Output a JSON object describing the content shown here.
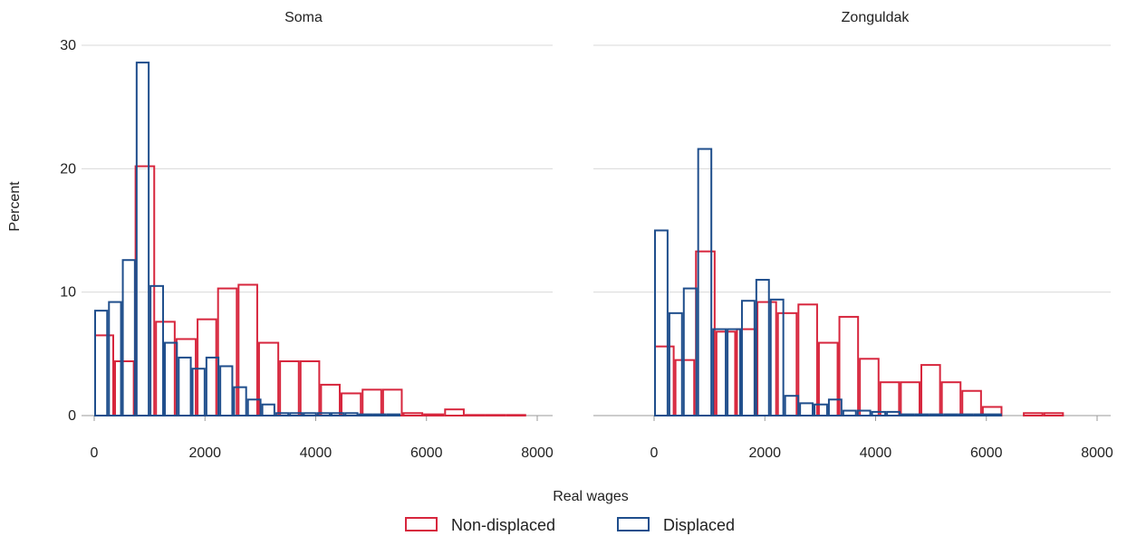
{
  "title": "",
  "colors": {
    "non_displaced": "#d7263d",
    "displaced": "#1f4e8c",
    "grid": "#d9d9d9",
    "axis": "#999999"
  },
  "chart_data": {
    "type": "bar",
    "xlabel": "Real wages",
    "ylabel": "Percent",
    "xlim": [
      0,
      8000
    ],
    "ylim": [
      0,
      30
    ],
    "xticks": [
      0,
      2000,
      4000,
      6000,
      8000
    ],
    "yticks": [
      0,
      10,
      20,
      30
    ],
    "grid": true,
    "legend_position": "bottom-center",
    "legend": [
      {
        "name": "Non-displaced",
        "color": "#d7263d"
      },
      {
        "name": "Displaced",
        "color": "#1f4e8c"
      }
    ],
    "panels": [
      {
        "title": "Soma",
        "series": [
          {
            "name": "Non-displaced",
            "bins": [
              {
                "x0": 0,
                "x1": 360,
                "y": 6.5
              },
              {
                "x0": 360,
                "x1": 730,
                "y": 4.4
              },
              {
                "x0": 730,
                "x1": 1100,
                "y": 20.2
              },
              {
                "x0": 1100,
                "x1": 1470,
                "y": 7.6
              },
              {
                "x0": 1470,
                "x1": 1850,
                "y": 6.2
              },
              {
                "x0": 1850,
                "x1": 2220,
                "y": 7.8
              },
              {
                "x0": 2220,
                "x1": 2590,
                "y": 10.3
              },
              {
                "x0": 2590,
                "x1": 2960,
                "y": 10.6
              },
              {
                "x0": 2960,
                "x1": 3340,
                "y": 5.9
              },
              {
                "x0": 3340,
                "x1": 3710,
                "y": 4.4
              },
              {
                "x0": 3710,
                "x1": 4080,
                "y": 4.4
              },
              {
                "x0": 4080,
                "x1": 4450,
                "y": 2.5
              },
              {
                "x0": 4450,
                "x1": 4830,
                "y": 1.8
              },
              {
                "x0": 4830,
                "x1": 5200,
                "y": 2.1
              },
              {
                "x0": 5200,
                "x1": 5570,
                "y": 2.1
              },
              {
                "x0": 5570,
                "x1": 5940,
                "y": 0.2
              },
              {
                "x0": 5940,
                "x1": 6320,
                "y": 0.1
              },
              {
                "x0": 6320,
                "x1": 6690,
                "y": 0.5
              },
              {
                "x0": 6690,
                "x1": 7060,
                "y": 0.05
              },
              {
                "x0": 7060,
                "x1": 7430,
                "y": 0.05
              },
              {
                "x0": 7430,
                "x1": 7800,
                "y": 0.05
              }
            ]
          },
          {
            "name": "Displaced",
            "bins": [
              {
                "x0": 0,
                "x1": 250,
                "y": 8.5
              },
              {
                "x0": 250,
                "x1": 500,
                "y": 9.2
              },
              {
                "x0": 500,
                "x1": 750,
                "y": 12.6
              },
              {
                "x0": 750,
                "x1": 1000,
                "y": 28.6
              },
              {
                "x0": 1000,
                "x1": 1260,
                "y": 10.5
              },
              {
                "x0": 1260,
                "x1": 1510,
                "y": 5.9
              },
              {
                "x0": 1510,
                "x1": 1760,
                "y": 4.7
              },
              {
                "x0": 1760,
                "x1": 2010,
                "y": 3.8
              },
              {
                "x0": 2010,
                "x1": 2260,
                "y": 4.7
              },
              {
                "x0": 2260,
                "x1": 2510,
                "y": 4.0
              },
              {
                "x0": 2510,
                "x1": 2760,
                "y": 2.3
              },
              {
                "x0": 2760,
                "x1": 3020,
                "y": 1.3
              },
              {
                "x0": 3020,
                "x1": 3270,
                "y": 0.9
              },
              {
                "x0": 3270,
                "x1": 3520,
                "y": 0.2
              },
              {
                "x0": 3520,
                "x1": 3770,
                "y": 0.2
              },
              {
                "x0": 3770,
                "x1": 4020,
                "y": 0.2
              },
              {
                "x0": 4020,
                "x1": 4270,
                "y": 0.2
              },
              {
                "x0": 4270,
                "x1": 4520,
                "y": 0.2
              },
              {
                "x0": 4520,
                "x1": 4770,
                "y": 0.2
              },
              {
                "x0": 4770,
                "x1": 5030,
                "y": 0.1
              },
              {
                "x0": 5030,
                "x1": 5280,
                "y": 0.1
              },
              {
                "x0": 5280,
                "x1": 5530,
                "y": 0.1
              }
            ]
          }
        ]
      },
      {
        "title": "Zonguldak",
        "series": [
          {
            "name": "Non-displaced",
            "bins": [
              {
                "x0": 0,
                "x1": 370,
                "y": 5.6
              },
              {
                "x0": 370,
                "x1": 740,
                "y": 4.5
              },
              {
                "x0": 740,
                "x1": 1110,
                "y": 13.3
              },
              {
                "x0": 1110,
                "x1": 1480,
                "y": 6.8
              },
              {
                "x0": 1480,
                "x1": 1850,
                "y": 7.0
              },
              {
                "x0": 1850,
                "x1": 2220,
                "y": 9.2
              },
              {
                "x0": 2220,
                "x1": 2590,
                "y": 8.3
              },
              {
                "x0": 2590,
                "x1": 2960,
                "y": 9.0
              },
              {
                "x0": 2960,
                "x1": 3330,
                "y": 5.9
              },
              {
                "x0": 3330,
                "x1": 3700,
                "y": 8.0
              },
              {
                "x0": 3700,
                "x1": 4070,
                "y": 4.6
              },
              {
                "x0": 4070,
                "x1": 4440,
                "y": 2.7
              },
              {
                "x0": 4440,
                "x1": 4810,
                "y": 2.7
              },
              {
                "x0": 4810,
                "x1": 5180,
                "y": 4.1
              },
              {
                "x0": 5180,
                "x1": 5550,
                "y": 2.7
              },
              {
                "x0": 5550,
                "x1": 5920,
                "y": 2.0
              },
              {
                "x0": 5920,
                "x1": 6290,
                "y": 0.7
              },
              {
                "x0": 6660,
                "x1": 7030,
                "y": 0.2
              },
              {
                "x0": 7030,
                "x1": 7400,
                "y": 0.2
              }
            ]
          },
          {
            "name": "Displaced",
            "bins": [
              {
                "x0": 0,
                "x1": 260,
                "y": 15.0
              },
              {
                "x0": 260,
                "x1": 520,
                "y": 8.3
              },
              {
                "x0": 520,
                "x1": 780,
                "y": 10.3
              },
              {
                "x0": 780,
                "x1": 1050,
                "y": 21.6
              },
              {
                "x0": 1050,
                "x1": 1310,
                "y": 7.0
              },
              {
                "x0": 1310,
                "x1": 1570,
                "y": 7.0
              },
              {
                "x0": 1570,
                "x1": 1830,
                "y": 9.3
              },
              {
                "x0": 1830,
                "x1": 2090,
                "y": 11.0
              },
              {
                "x0": 2090,
                "x1": 2350,
                "y": 9.4
              },
              {
                "x0": 2350,
                "x1": 2620,
                "y": 1.6
              },
              {
                "x0": 2620,
                "x1": 2880,
                "y": 1.0
              },
              {
                "x0": 2880,
                "x1": 3140,
                "y": 0.9
              },
              {
                "x0": 3140,
                "x1": 3400,
                "y": 1.3
              },
              {
                "x0": 3400,
                "x1": 3660,
                "y": 0.4
              },
              {
                "x0": 3660,
                "x1": 3920,
                "y": 0.4
              },
              {
                "x0": 3920,
                "x1": 4190,
                "y": 0.3
              },
              {
                "x0": 4190,
                "x1": 4450,
                "y": 0.3
              },
              {
                "x0": 4450,
                "x1": 4710,
                "y": 0.1
              },
              {
                "x0": 4710,
                "x1": 4970,
                "y": 0.1
              },
              {
                "x0": 4970,
                "x1": 5230,
                "y": 0.1
              },
              {
                "x0": 5230,
                "x1": 5490,
                "y": 0.1
              },
              {
                "x0": 5490,
                "x1": 5760,
                "y": 0.1
              },
              {
                "x0": 5760,
                "x1": 6020,
                "y": 0.1
              },
              {
                "x0": 6020,
                "x1": 6280,
                "y": 0.1
              }
            ]
          }
        ]
      }
    ]
  }
}
